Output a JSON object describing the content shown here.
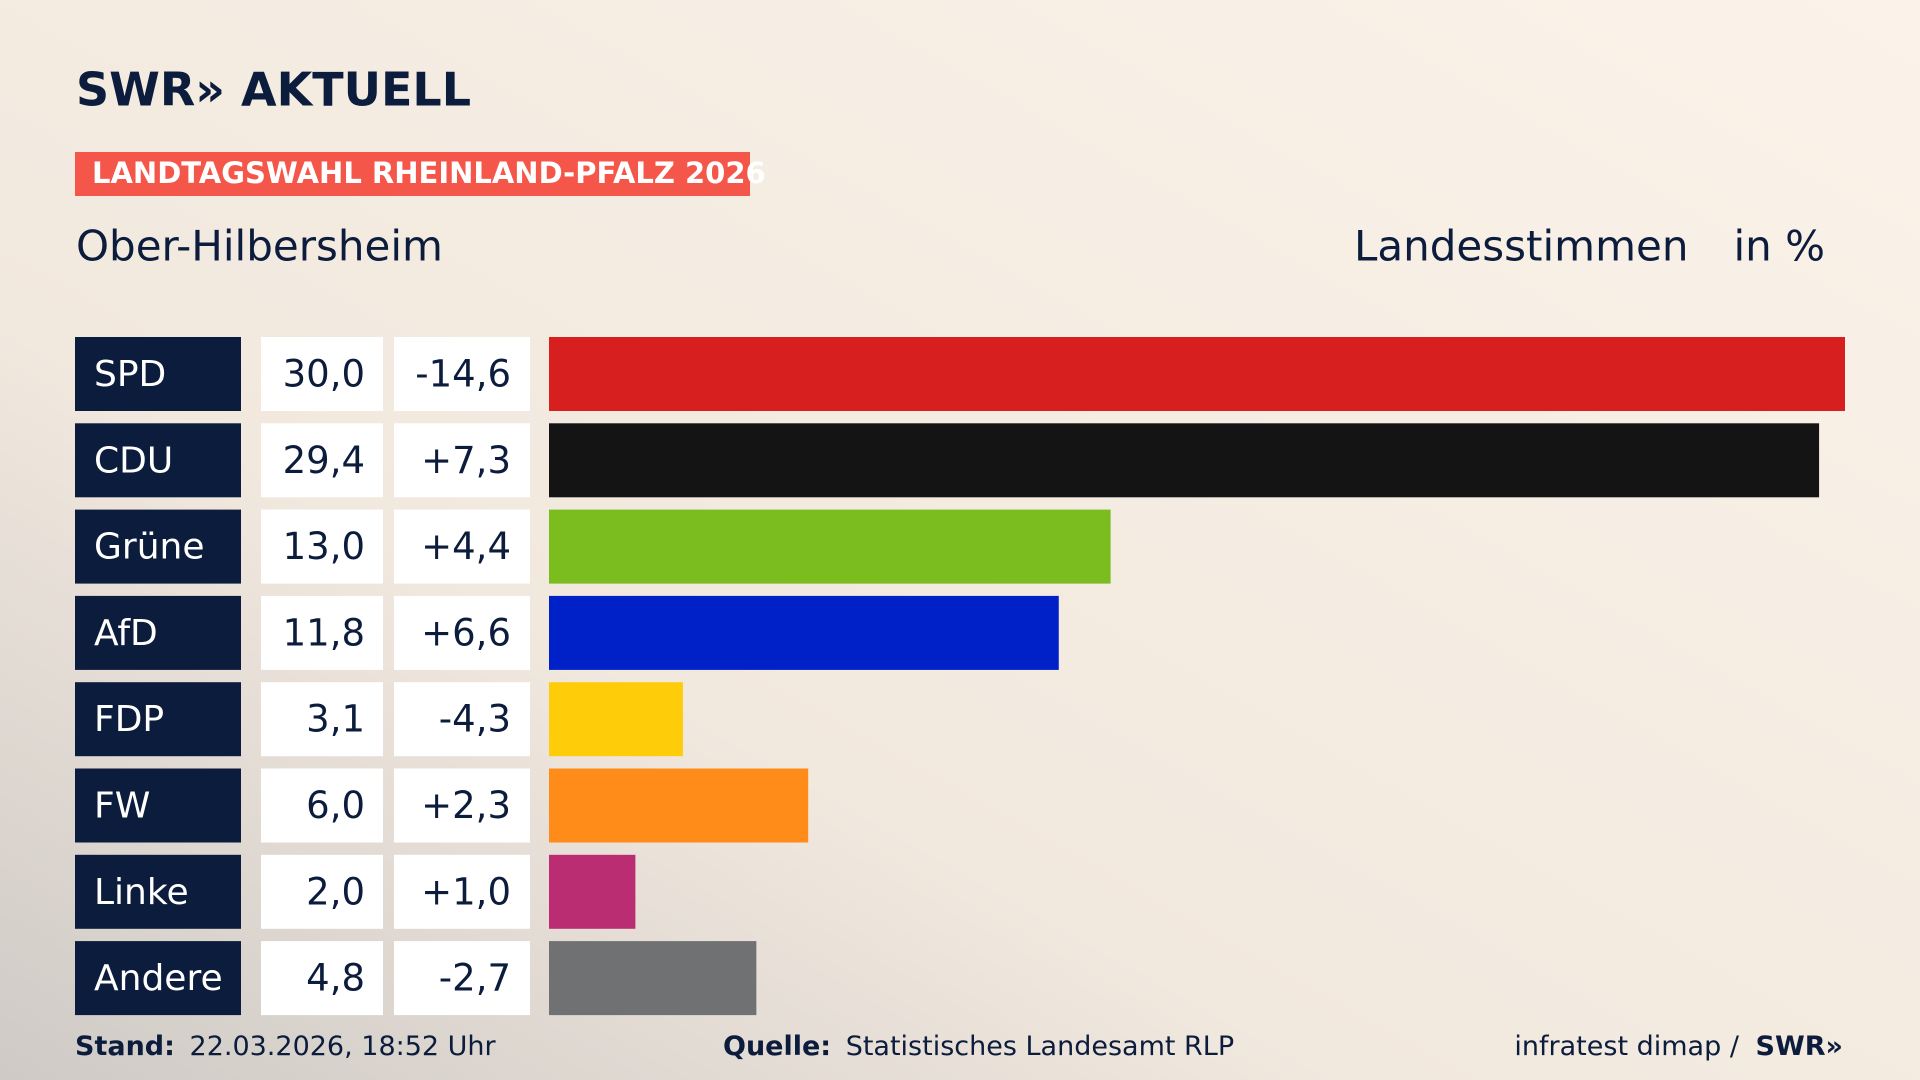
{
  "chart_data": {
    "type": "bar",
    "logo": "SWR» AKTUELL",
    "banner": "LANDTAGSWAHL RHEINLAND-PFALZ 2026",
    "title": "Ober-Hilbersheim",
    "subtitle": "Landesstimmen",
    "unit": "in %",
    "categories": [
      "SPD",
      "CDU",
      "Grüne",
      "AfD",
      "FDP",
      "FW",
      "Linke",
      "Andere"
    ],
    "values": [
      30.0,
      29.4,
      13.0,
      11.8,
      3.1,
      6.0,
      2.0,
      4.8
    ],
    "value_labels": [
      "30,0",
      "29,4",
      "13,0",
      "11,8",
      "3,1",
      "6,0",
      "2,0",
      "4,8"
    ],
    "changes": [
      -14.6,
      7.3,
      4.4,
      6.6,
      -4.3,
      2.3,
      1.0,
      -2.7
    ],
    "change_labels": [
      "-14,6",
      "+7,3",
      "+4,4",
      "+6,6",
      "-4,3",
      "+2,3",
      "+1,0",
      "-2,7"
    ],
    "colors": [
      "#d71f1f",
      "#141414",
      "#7bbc1e",
      "#0021c8",
      "#ffcc0a",
      "#ff8c19",
      "#bb2d73",
      "#707173"
    ],
    "footer": {
      "stand_label": "Stand:",
      "stand": "22.03.2026, 18:52 Uhr",
      "source_label": "Quelle:",
      "source": "Statistisches Landesamt RLP",
      "credit": "infratest dimap /",
      "credit_logo": "SWR»"
    }
  }
}
